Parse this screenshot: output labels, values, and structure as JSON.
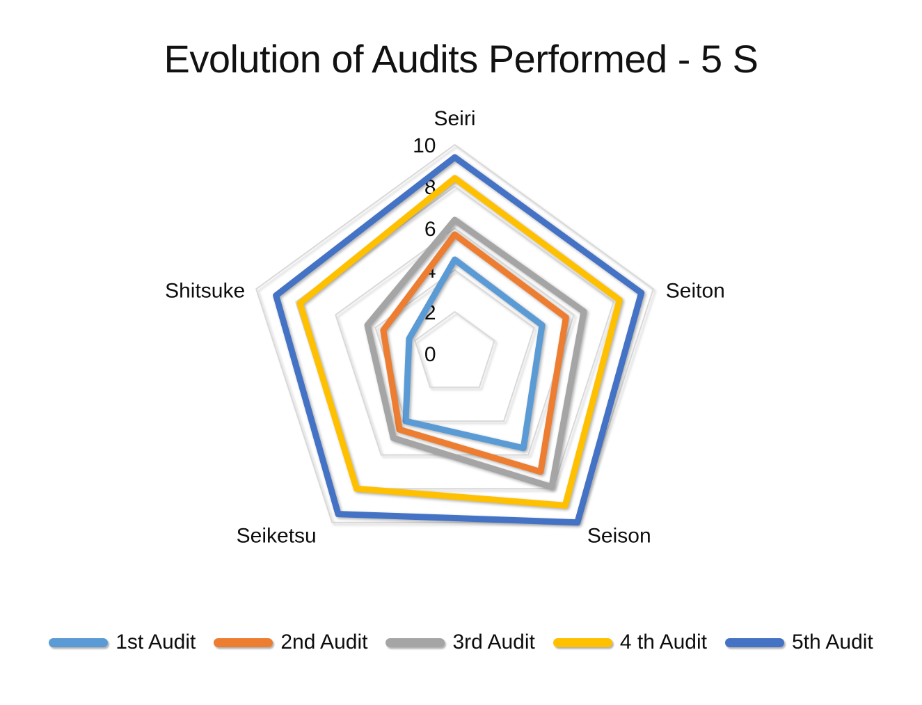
{
  "title": "Evolution of Audits Performed - 5 S",
  "chart_data": {
    "type": "radar",
    "categories": [
      "Seiri",
      "Seiton",
      "Seison",
      "Seiketsu",
      "Shitsuke"
    ],
    "series": [
      {
        "name": "1st Audit",
        "color": "#5B9BD5",
        "values": [
          4.5,
          4.4,
          5.6,
          4.0,
          2.3
        ]
      },
      {
        "name": "2nd Audit",
        "color": "#ED7D31",
        "values": [
          5.7,
          5.6,
          7.0,
          4.5,
          3.6
        ]
      },
      {
        "name": "3rd Audit",
        "color": "#A5A5A5",
        "values": [
          6.4,
          6.5,
          7.9,
          5.0,
          4.4
        ]
      },
      {
        "name": "4 th Audit",
        "color": "#FFC000",
        "values": [
          8.4,
          8.3,
          9.0,
          8.0,
          7.8
        ]
      },
      {
        "name": "5th Audit",
        "color": "#4472C4",
        "values": [
          9.4,
          9.4,
          10.0,
          9.5,
          9.0
        ]
      }
    ],
    "axis": {
      "min": 0,
      "max": 10,
      "step": 2,
      "tick_labels": [
        "10",
        "8",
        "6",
        "4",
        "2",
        "0"
      ]
    },
    "gridline_color": "#D9D9D9",
    "grid": "concentric-pentagons",
    "legend_position": "bottom",
    "title": "Evolution of Audits Performed - 5 S"
  }
}
